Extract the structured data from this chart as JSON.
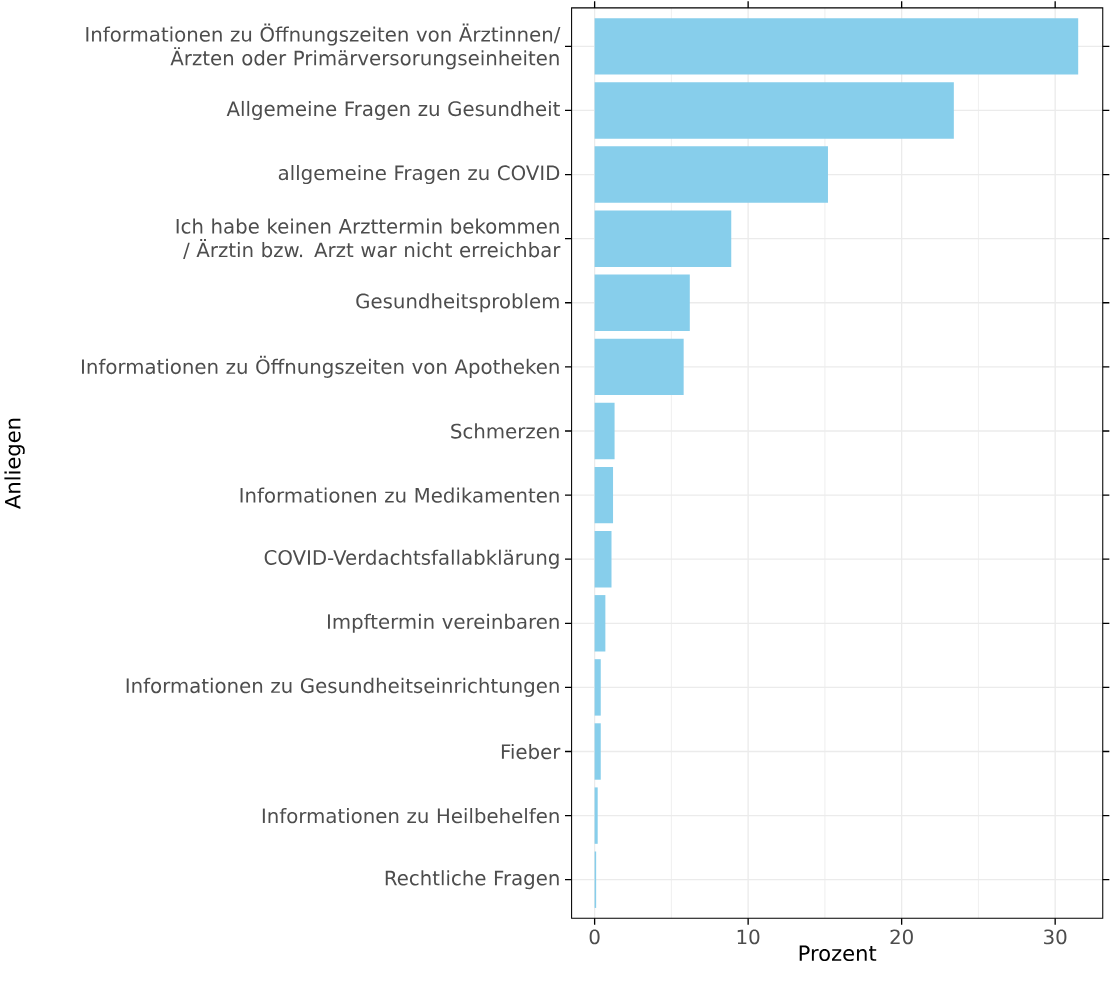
{
  "chart_data": {
    "type": "bar",
    "orientation": "horizontal",
    "xlabel": "Prozent",
    "ylabel": "Anliegen",
    "categories": [
      "Informationen zu Öffnungszeiten von Ärztinnen/ Ärzten oder Primärversorungseinheiten",
      "Allgemeine Fragen zu Gesundheit",
      "allgemeine Fragen zu COVID",
      "Ich habe keinen Arzttermin bekommen / Ärztin bzw. Arzt war nicht erreichbar",
      "Gesundheitsproblem",
      "Informationen zu Öffnungszeiten von Apotheken",
      "Schmerzen",
      "Informationen zu Medikamenten",
      "COVID-Verdachtsfallabklärung",
      "Impftermin vereinbaren",
      "Informationen zu Gesundheitseinrichtungen",
      "Fieber",
      "Informationen zu Heilbehelfen",
      "Rechtliche Fragen"
    ],
    "values": [
      31.5,
      23.4,
      15.2,
      8.9,
      6.2,
      5.8,
      1.3,
      1.2,
      1.1,
      0.7,
      0.4,
      0.4,
      0.2,
      0.1
    ],
    "color": "#87ceeb",
    "xlim": [
      -1.5,
      33.1
    ],
    "xticks": [
      0,
      10,
      20,
      30
    ],
    "grid": true
  }
}
